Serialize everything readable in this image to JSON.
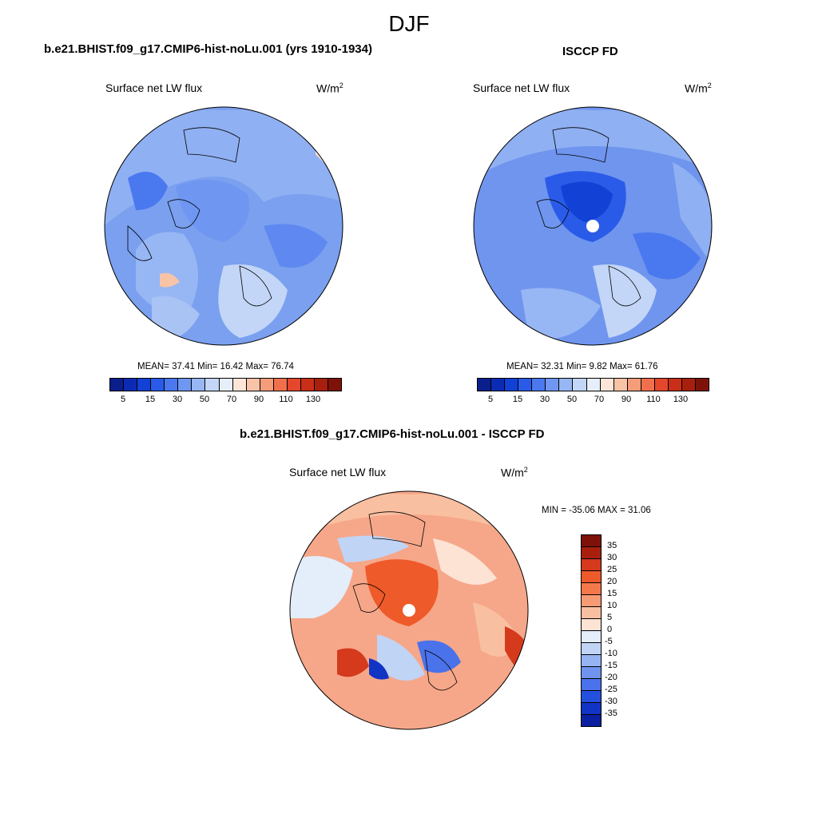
{
  "figure": {
    "title": "DJF"
  },
  "panels": [
    {
      "title": "b.e21.BHIST.f09_g17.CMIP6-hist-noLu.001 (yrs 1910-1934)",
      "left_label": "Surface net LW flux",
      "units": "W/m",
      "units_sup": "2",
      "stats": "MEAN=  37.41  Min=  16.42  Max=  76.74"
    },
    {
      "title": "ISCCP FD",
      "left_label": "Surface net LW flux",
      "units": "W/m",
      "units_sup": "2",
      "stats": "MEAN=  32.31  Min=    9.82  Max=  61.76"
    },
    {
      "title": "b.e21.BHIST.f09_g17.CMIP6-hist-noLu.001 - ISCCP FD",
      "left_label": "Surface net LW flux",
      "units": "W/m",
      "units_sup": "2",
      "stats": "MIN = -35.06 MAX =  31.06"
    }
  ],
  "colorbar_abs": {
    "ticks": [
      "5",
      "15",
      "30",
      "50",
      "70",
      "90",
      "110",
      "130"
    ],
    "colors": [
      "#0a1f8c",
      "#0c2bb5",
      "#1241d6",
      "#2a5be8",
      "#4a78ef",
      "#6f97f2",
      "#97b6f4",
      "#c3d6f7",
      "#e6eefa",
      "#fde6d8",
      "#f9c3a7",
      "#f59c7a",
      "#f0704d",
      "#e4472b",
      "#c92e18",
      "#a8200d",
      "#7f1208"
    ]
  },
  "colorbar_diff": {
    "ticks": [
      "35",
      "30",
      "25",
      "20",
      "15",
      "10",
      "5",
      "0",
      "-5",
      "-10",
      "-15",
      "-20",
      "-25",
      "-30",
      "-35"
    ],
    "colors": [
      "#7f1208",
      "#a8200d",
      "#d53a1c",
      "#ef5a2a",
      "#f5784a",
      "#f79b74",
      "#f9bfa1",
      "#fde3d4",
      "#e4edfa",
      "#c0d4f6",
      "#97b4f2",
      "#6f93ee",
      "#4a72ea",
      "#2350df",
      "#1034c4",
      "#0a20a0"
    ]
  },
  "map_fills": {
    "model_base": "#7aa0ef",
    "obs_base": "#6f95ee",
    "diff_base": "#f6a789"
  }
}
